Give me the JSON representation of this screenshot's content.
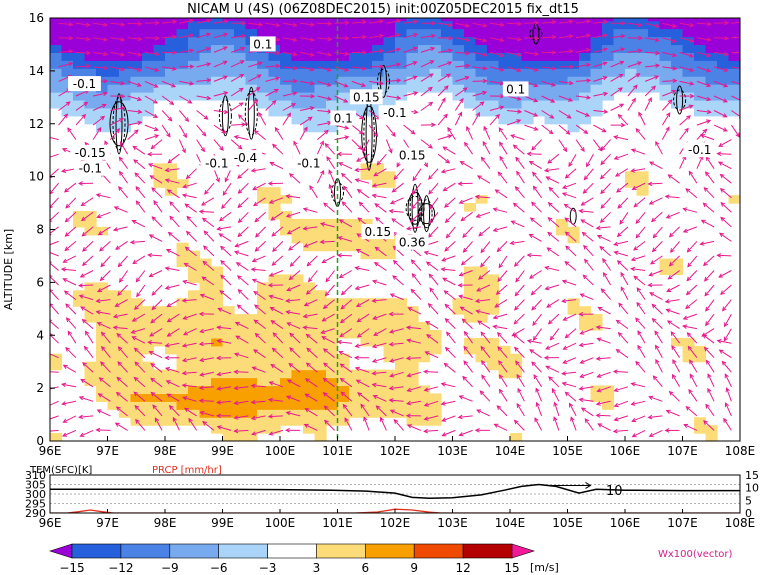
{
  "title": "NICAM  U  (4S)  (06Z08DEC2015)  init:00Z05DEC2015  fix_dt15",
  "chart_data": [
    {
      "type": "heatmap",
      "panel": "main",
      "variable": "U",
      "ylabel": "ALTITUDE  [km]",
      "xlabel": "",
      "xlim": [
        96,
        108
      ],
      "ylim": [
        0,
        16
      ],
      "x_ticks": [
        "96E",
        "97E",
        "98E",
        "99E",
        "100E",
        "101E",
        "102E",
        "103E",
        "104E",
        "105E",
        "106E",
        "107E",
        "108E"
      ],
      "y_ticks": [
        "0",
        "2",
        "4",
        "6",
        "8",
        "10",
        "12",
        "14",
        "16"
      ],
      "marker_longitude": 101,
      "contour_labels": [
        {
          "text": "0.1",
          "lon": 99.7,
          "alt": 15.0
        },
        {
          "text": "-0.1",
          "lon": 96.6,
          "alt": 13.5
        },
        {
          "text": "0.1",
          "lon": 104.1,
          "alt": 13.3
        },
        {
          "text": "0.15",
          "lon": 101.5,
          "alt": 13.0
        },
        {
          "text": "0.1",
          "lon": 101.1,
          "alt": 12.2
        },
        {
          "text": "-0.1",
          "lon": 102.0,
          "alt": 12.4
        },
        {
          "text": "-0.1",
          "lon": 107.3,
          "alt": 11.0
        },
        {
          "text": "-0.15",
          "lon": 96.7,
          "alt": 10.9
        },
        {
          "text": "-0.1",
          "lon": 96.7,
          "alt": 10.3
        },
        {
          "text": "-0.1",
          "lon": 98.9,
          "alt": 10.5
        },
        {
          "text": "-0.4",
          "lon": 99.4,
          "alt": 10.7
        },
        {
          "text": "-0.1",
          "lon": 100.5,
          "alt": 10.5
        },
        {
          "text": "0.15",
          "lon": 102.3,
          "alt": 10.8
        },
        {
          "text": "0.15",
          "lon": 101.7,
          "alt": 7.9
        },
        {
          "text": "0.36",
          "lon": 102.3,
          "alt": 7.5
        }
      ],
      "colorbar": {
        "levels": [
          "-15",
          "-12",
          "-9",
          "-6",
          "-3",
          "3",
          "6",
          "9",
          "12",
          "15"
        ],
        "colors": [
          "#9a00d8",
          "#2660dc",
          "#4a82e6",
          "#78aaf0",
          "#aad4f8",
          "#ffffff",
          "#fcdc78",
          "#f8a000",
          "#f04a00",
          "#b40000",
          "#f01a9a"
        ],
        "unit": "[m/s]",
        "vector_note": "Wx100(vector)"
      }
    },
    {
      "type": "line",
      "panel": "surface",
      "xlim": [
        96,
        108
      ],
      "x_ticks": [
        "96E",
        "97E",
        "98E",
        "99E",
        "100E",
        "101E",
        "102E",
        "103E",
        "104E",
        "105E",
        "106E",
        "107E",
        "108E"
      ],
      "series": [
        {
          "name": "TEM(SFC)[K]",
          "color": "#000000",
          "axis": "left",
          "x": [
            96,
            97,
            98,
            99,
            100,
            100.9,
            101.5,
            102.0,
            102.3,
            102.6,
            103.0,
            103.5,
            103.9,
            104.2,
            104.5,
            104.8,
            105.2,
            105.5,
            106,
            107,
            108
          ],
          "y": [
            302.5,
            302.5,
            302.5,
            302.5,
            302.3,
            302.0,
            301.5,
            300.5,
            298.2,
            297.8,
            298.0,
            299.5,
            302.0,
            304.0,
            305.0,
            304.0,
            300.5,
            302.5,
            302.0,
            301.8,
            301.8
          ]
        },
        {
          "name": "PRCP [mm/hr]",
          "color": "#e0301e",
          "axis": "right",
          "x": [
            96,
            96.3,
            96.5,
            96.7,
            96.9,
            97.1,
            101.3,
            101.7,
            102.0,
            102.3,
            102.6,
            102.8,
            108
          ],
          "y": [
            0,
            0,
            0.5,
            1.2,
            0.5,
            0,
            0,
            0.4,
            1.5,
            1.2,
            0.3,
            0,
            0
          ]
        }
      ],
      "left_ticks": [
        "290",
        "295",
        "300",
        "305",
        "310"
      ],
      "left_range": [
        290,
        310
      ],
      "right_ticks": [
        "0",
        "5",
        "10",
        "15"
      ],
      "right_range": [
        0,
        15
      ],
      "annotation": "10"
    }
  ]
}
